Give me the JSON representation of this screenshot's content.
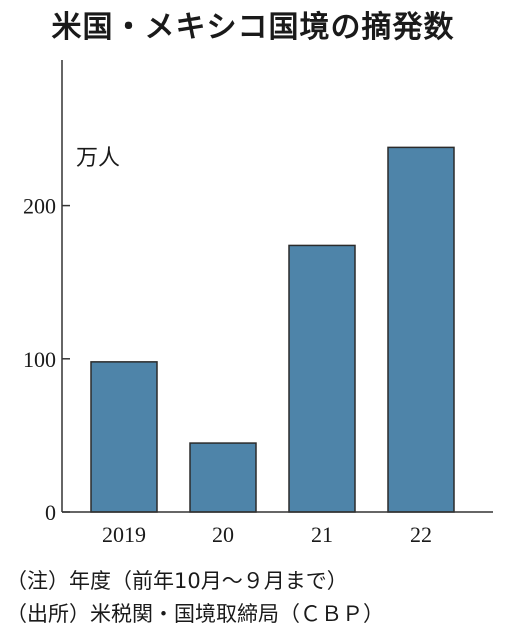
{
  "title": "米国・メキシコ国境の摘発数",
  "unit_label": "万人",
  "note": "（注）年度（前年10月～９月まで）",
  "source": "（出所）米税関・国境取締局（ＣＢＰ）",
  "colors": {
    "bar": "#4e84a9",
    "bar_edge": "#2b2b2b",
    "axis": "#333333"
  },
  "chart_data": {
    "type": "bar",
    "categories": [
      "2019",
      "20",
      "21",
      "22"
    ],
    "values": [
      98,
      45,
      174,
      238
    ],
    "ylim": [
      0,
      290
    ],
    "yticks": [
      "0",
      "100",
      "200"
    ],
    "ytick_values": [
      0,
      100,
      200
    ],
    "grid": false
  }
}
